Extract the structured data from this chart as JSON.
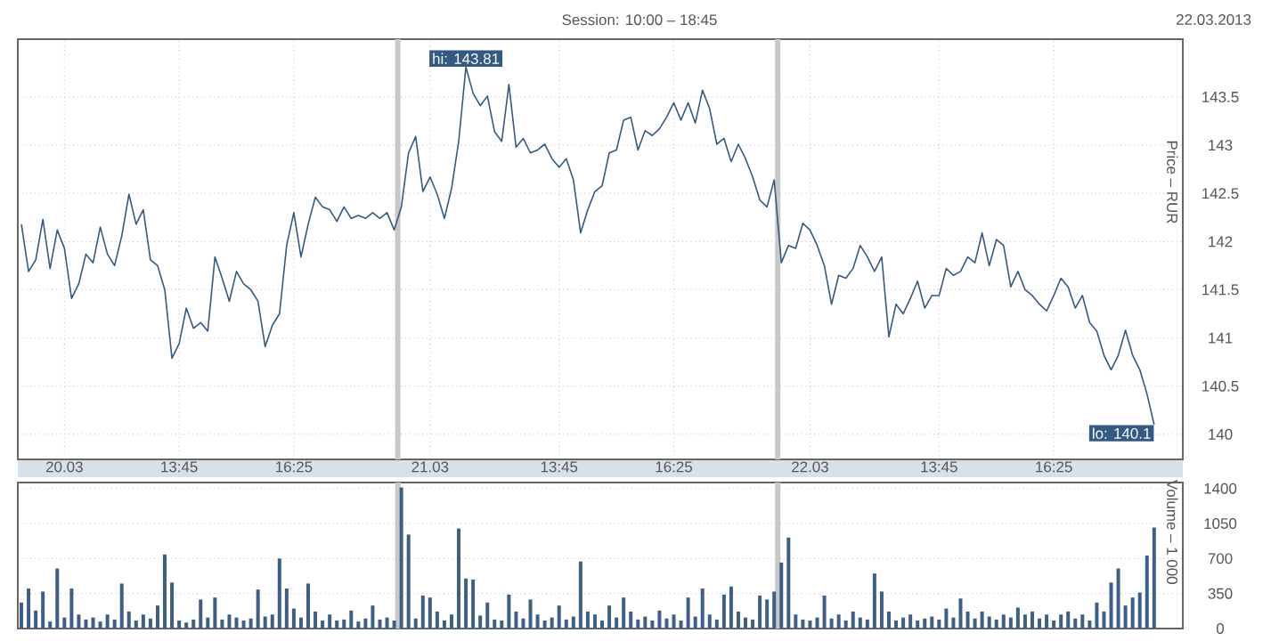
{
  "chart_data": [
    {
      "type": "line",
      "title": "Session: 10:00 – 18:45",
      "ylabel": "Price – RUR",
      "color": "#355a82",
      "marker": "none",
      "grid": true,
      "annotations": [
        "22.03.2013",
        {
          "text": "hi: 143.81",
          "y": 143.81
        },
        "lo: 140.1"
      ],
      "ylim": [
        139.74,
        144.1
      ],
      "yticks": [
        140,
        140.5,
        141,
        141.5,
        142,
        142.5,
        143,
        143.5
      ],
      "categories": [
        null,
        null,
        null,
        null,
        null,
        null,
        "20.03",
        null,
        null,
        null,
        null,
        null,
        null,
        null,
        null,
        null,
        null,
        null,
        null,
        null,
        null,
        null,
        "13:45",
        null,
        null,
        null,
        null,
        null,
        null,
        null,
        null,
        null,
        null,
        null,
        null,
        null,
        null,
        null,
        "16:25",
        null,
        null,
        null,
        null,
        null,
        null,
        null,
        null,
        null,
        null,
        null,
        null,
        null,
        null,
        null,
        null,
        null,
        null,
        "21.03",
        null,
        null,
        null,
        null,
        null,
        null,
        null,
        null,
        null,
        null,
        null,
        null,
        null,
        null,
        null,
        null,
        null,
        "13:45",
        null,
        null,
        null,
        null,
        null,
        null,
        null,
        null,
        null,
        null,
        null,
        null,
        null,
        null,
        null,
        "16:25",
        null,
        null,
        null,
        null,
        null,
        null,
        null,
        null,
        null,
        null,
        null,
        null,
        null,
        null,
        null,
        null,
        null,
        null,
        "22.03",
        null,
        null,
        null,
        null,
        null,
        null,
        null,
        null,
        null,
        null,
        null,
        null,
        null,
        null,
        null,
        null,
        null,
        "13:45",
        null,
        null,
        null,
        null,
        null,
        null,
        null,
        null,
        null,
        null,
        null,
        null,
        null,
        null,
        null,
        "16:25",
        null,
        null,
        null,
        null,
        null,
        null,
        null,
        null,
        null,
        null,
        null,
        null,
        null,
        null
      ],
      "values": [
        142.18,
        141.69,
        141.81,
        142.23,
        141.72,
        142.12,
        141.93,
        141.41,
        141.56,
        141.87,
        141.78,
        142.15,
        141.87,
        141.75,
        142.06,
        142.49,
        142.18,
        142.33,
        141.81,
        141.75,
        141.5,
        140.79,
        140.94,
        141.31,
        141.1,
        141.16,
        141.07,
        141.84,
        141.62,
        141.38,
        141.69,
        141.56,
        141.5,
        141.38,
        140.91,
        141.13,
        141.25,
        141.96,
        142.3,
        141.84,
        142.18,
        142.46,
        142.36,
        142.33,
        142.21,
        142.36,
        142.24,
        142.27,
        142.24,
        142.3,
        142.24,
        142.3,
        142.12,
        142.36,
        142.92,
        143.09,
        142.52,
        142.67,
        142.49,
        142.24,
        142.55,
        143.04,
        143.81,
        143.54,
        143.41,
        143.51,
        143.14,
        143.04,
        143.63,
        142.98,
        143.07,
        142.92,
        142.95,
        143.01,
        142.86,
        142.77,
        142.86,
        142.64,
        142.09,
        142.33,
        142.52,
        142.58,
        142.92,
        142.95,
        143.26,
        143.29,
        142.95,
        143.15,
        143.1,
        143.17,
        143.29,
        143.44,
        143.26,
        143.44,
        143.23,
        143.57,
        143.38,
        143.01,
        143.07,
        142.83,
        143.01,
        142.86,
        142.67,
        142.43,
        142.36,
        142.64,
        141.78,
        141.96,
        141.93,
        142.19,
        142.12,
        141.96,
        141.75,
        141.35,
        141.65,
        141.62,
        141.72,
        141.96,
        141.84,
        141.69,
        141.84,
        141.01,
        141.35,
        141.25,
        141.41,
        141.59,
        141.31,
        141.44,
        141.44,
        141.72,
        141.65,
        141.69,
        141.84,
        141.78,
        142.09,
        141.75,
        142.02,
        141.96,
        141.53,
        141.69,
        141.5,
        141.44,
        141.35,
        141.28,
        141.44,
        141.62,
        141.53,
        141.31,
        141.44,
        141.16,
        141.07,
        140.82,
        140.67,
        140.82,
        141.08,
        140.82,
        140.67,
        140.42,
        140.1
      ]
    },
    {
      "type": "bar",
      "ylabel": "Volume – 1 000",
      "color": "#3d5f86",
      "grid": "y",
      "ylim": [
        0,
        1460
      ],
      "yticks": [
        0,
        350,
        700,
        1050,
        1400
      ],
      "categories": [
        null,
        null,
        null,
        null,
        null,
        null,
        null,
        null,
        null,
        null,
        null,
        null,
        null,
        null,
        null,
        null,
        null,
        null,
        null,
        null,
        null,
        null,
        null,
        null,
        null,
        null,
        null,
        null,
        null,
        null,
        null,
        null,
        null,
        null,
        null,
        null,
        null,
        null,
        null,
        null,
        null,
        null,
        null,
        null,
        null,
        null,
        null,
        null,
        null,
        null,
        null,
        null,
        null,
        null,
        null,
        null,
        null,
        null,
        null,
        null,
        null,
        null,
        null,
        null,
        null,
        null,
        null,
        null,
        null,
        null,
        null,
        null,
        null,
        null,
        null,
        null,
        null,
        null,
        null,
        null,
        null,
        null,
        null,
        null,
        null,
        null,
        null,
        null,
        null,
        null,
        null,
        null,
        null,
        null,
        null,
        null,
        null,
        null,
        null,
        null,
        null,
        null,
        null,
        null,
        null,
        null,
        null,
        null,
        null,
        null,
        null,
        null,
        null,
        null,
        null,
        null,
        null,
        null,
        null,
        null,
        null,
        null,
        null,
        null,
        null,
        null,
        null,
        null,
        null,
        null,
        null,
        null,
        null,
        null,
        null,
        null,
        null,
        null,
        null,
        null,
        null,
        null,
        null,
        null,
        null,
        null,
        null,
        null,
        null,
        null,
        null,
        null,
        null,
        null,
        null,
        null,
        null,
        null,
        null
      ],
      "values": [
        260,
        400,
        180,
        370,
        70,
        600,
        110,
        400,
        140,
        90,
        110,
        70,
        140,
        90,
        450,
        170,
        80,
        140,
        100,
        230,
        740,
        460,
        80,
        60,
        90,
        290,
        110,
        310,
        90,
        140,
        110,
        80,
        100,
        390,
        120,
        140,
        700,
        400,
        200,
        110,
        450,
        170,
        80,
        140,
        80,
        90,
        180,
        70,
        100,
        230,
        90,
        110,
        80,
        1410,
        940,
        100,
        330,
        310,
        170,
        80,
        140,
        1000,
        500,
        490,
        130,
        260,
        90,
        80,
        340,
        170,
        100,
        290,
        140,
        80,
        110,
        230,
        90,
        120,
        670,
        170,
        140,
        80,
        230,
        110,
        310,
        170,
        90,
        120,
        80,
        180,
        100,
        140,
        80,
        310,
        120,
        400,
        140,
        90,
        340,
        420,
        170,
        110,
        90,
        330,
        290,
        370,
        660,
        910,
        140,
        90,
        80,
        110,
        330,
        100,
        140,
        80,
        170,
        110,
        90,
        550,
        370,
        170,
        80,
        110,
        140,
        80,
        100,
        120,
        90,
        200,
        110,
        300,
        170,
        100,
        170,
        120,
        90,
        140,
        110,
        210,
        140,
        170,
        100,
        140,
        80,
        140,
        170,
        100,
        140,
        80,
        260,
        170,
        460,
        600,
        230,
        310,
        360,
        730,
        1010
      ]
    }
  ]
}
